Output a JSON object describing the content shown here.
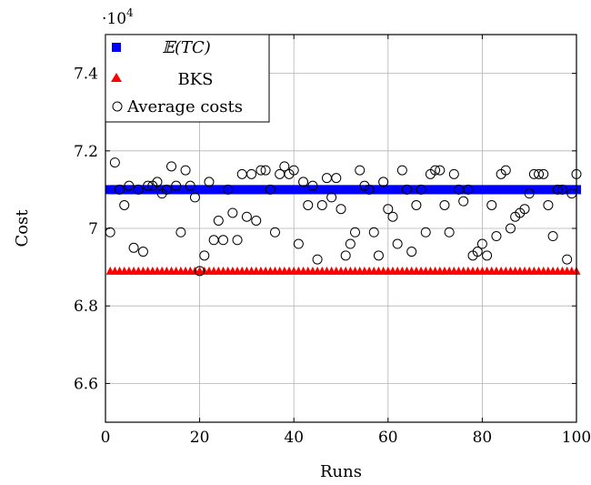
{
  "chart_data": {
    "type": "scatter",
    "xlabel": "Runs",
    "ylabel": "Cost",
    "y_scale_label_base": "·10",
    "y_scale_label_exp": "4",
    "xlim": [
      0,
      100
    ],
    "ylim": [
      6.5,
      7.5
    ],
    "x_ticks": [
      0,
      20,
      40,
      60,
      80,
      100
    ],
    "y_ticks": [
      6.6,
      6.8,
      7,
      7.2,
      7.4
    ],
    "x_tick_labels": [
      "0",
      "20",
      "40",
      "60",
      "80",
      "100"
    ],
    "y_tick_labels": [
      "6.6",
      "6.8",
      "7",
      "7.2",
      "7.4"
    ],
    "grid": true,
    "legend_position": "top-left",
    "series": [
      {
        "name": "𝔼(TC)",
        "marker": "square",
        "color": "#0000ff",
        "x": [
          1,
          2,
          3,
          4,
          5,
          6,
          7,
          8,
          9,
          10,
          11,
          12,
          13,
          14,
          15,
          16,
          17,
          18,
          19,
          20,
          21,
          22,
          23,
          24,
          25,
          26,
          27,
          28,
          29,
          30,
          31,
          32,
          33,
          34,
          35,
          36,
          37,
          38,
          39,
          40,
          41,
          42,
          43,
          44,
          45,
          46,
          47,
          48,
          49,
          50,
          51,
          52,
          53,
          54,
          55,
          56,
          57,
          58,
          59,
          60,
          61,
          62,
          63,
          64,
          65,
          66,
          67,
          68,
          69,
          70,
          71,
          72,
          73,
          74,
          75,
          76,
          77,
          78,
          79,
          80,
          81,
          82,
          83,
          84,
          85,
          86,
          87,
          88,
          89,
          90,
          91,
          92,
          93,
          94,
          95,
          96,
          97,
          98,
          99,
          100
        ],
        "y": [
          7.1,
          7.1,
          7.1,
          7.1,
          7.1,
          7.1,
          7.1,
          7.1,
          7.1,
          7.1,
          7.1,
          7.1,
          7.1,
          7.1,
          7.1,
          7.1,
          7.1,
          7.1,
          7.1,
          7.1,
          7.1,
          7.1,
          7.1,
          7.1,
          7.1,
          7.1,
          7.1,
          7.1,
          7.1,
          7.1,
          7.1,
          7.1,
          7.1,
          7.1,
          7.1,
          7.1,
          7.1,
          7.1,
          7.1,
          7.1,
          7.1,
          7.1,
          7.1,
          7.1,
          7.1,
          7.1,
          7.1,
          7.1,
          7.1,
          7.1,
          7.1,
          7.1,
          7.1,
          7.1,
          7.1,
          7.1,
          7.1,
          7.1,
          7.1,
          7.1,
          7.1,
          7.1,
          7.1,
          7.1,
          7.1,
          7.1,
          7.1,
          7.1,
          7.1,
          7.1,
          7.1,
          7.1,
          7.1,
          7.1,
          7.1,
          7.1,
          7.1,
          7.1,
          7.1,
          7.1,
          7.1,
          7.1,
          7.1,
          7.1,
          7.1,
          7.1,
          7.1,
          7.1,
          7.1,
          7.1,
          7.1,
          7.1,
          7.1,
          7.1,
          7.1,
          7.1,
          7.1,
          7.1,
          7.1,
          7.1
        ]
      },
      {
        "name": "BKS",
        "marker": "triangle",
        "color": "#ff0000",
        "x": [
          1,
          2,
          3,
          4,
          5,
          6,
          7,
          8,
          9,
          10,
          11,
          12,
          13,
          14,
          15,
          16,
          17,
          18,
          19,
          20,
          21,
          22,
          23,
          24,
          25,
          26,
          27,
          28,
          29,
          30,
          31,
          32,
          33,
          34,
          35,
          36,
          37,
          38,
          39,
          40,
          41,
          42,
          43,
          44,
          45,
          46,
          47,
          48,
          49,
          50,
          51,
          52,
          53,
          54,
          55,
          56,
          57,
          58,
          59,
          60,
          61,
          62,
          63,
          64,
          65,
          66,
          67,
          68,
          69,
          70,
          71,
          72,
          73,
          74,
          75,
          76,
          77,
          78,
          79,
          80,
          81,
          82,
          83,
          84,
          85,
          86,
          87,
          88,
          89,
          90,
          91,
          92,
          93,
          94,
          95,
          96,
          97,
          98,
          99,
          100
        ],
        "y": [
          6.89,
          6.89,
          6.89,
          6.89,
          6.89,
          6.89,
          6.89,
          6.89,
          6.89,
          6.89,
          6.89,
          6.89,
          6.89,
          6.89,
          6.89,
          6.89,
          6.89,
          6.89,
          6.89,
          6.89,
          6.89,
          6.89,
          6.89,
          6.89,
          6.89,
          6.89,
          6.89,
          6.89,
          6.89,
          6.89,
          6.89,
          6.89,
          6.89,
          6.89,
          6.89,
          6.89,
          6.89,
          6.89,
          6.89,
          6.89,
          6.89,
          6.89,
          6.89,
          6.89,
          6.89,
          6.89,
          6.89,
          6.89,
          6.89,
          6.89,
          6.89,
          6.89,
          6.89,
          6.89,
          6.89,
          6.89,
          6.89,
          6.89,
          6.89,
          6.89,
          6.89,
          6.89,
          6.89,
          6.89,
          6.89,
          6.89,
          6.89,
          6.89,
          6.89,
          6.89,
          6.89,
          6.89,
          6.89,
          6.89,
          6.89,
          6.89,
          6.89,
          6.89,
          6.89,
          6.89,
          6.89,
          6.89,
          6.89,
          6.89,
          6.89,
          6.89,
          6.89,
          6.89,
          6.89,
          6.89,
          6.89,
          6.89,
          6.89,
          6.89,
          6.89,
          6.89,
          6.89,
          6.89,
          6.89,
          6.89
        ]
      },
      {
        "name": "Average costs",
        "marker": "circle-open",
        "color": "#000000",
        "x": [
          1,
          2,
          3,
          4,
          5,
          6,
          7,
          8,
          9,
          10,
          11,
          12,
          13,
          14,
          15,
          16,
          17,
          18,
          19,
          20,
          21,
          22,
          23,
          24,
          25,
          26,
          27,
          28,
          29,
          30,
          31,
          32,
          33,
          34,
          35,
          36,
          37,
          38,
          39,
          40,
          41,
          42,
          43,
          44,
          45,
          46,
          47,
          48,
          49,
          50,
          51,
          52,
          53,
          54,
          55,
          56,
          57,
          58,
          59,
          60,
          61,
          62,
          63,
          64,
          65,
          66,
          67,
          68,
          69,
          70,
          71,
          72,
          73,
          74,
          75,
          76,
          77,
          78,
          79,
          80,
          81,
          82,
          83,
          84,
          85,
          86,
          87,
          88,
          89,
          90,
          91,
          92,
          93,
          94,
          95,
          96,
          97,
          98,
          99,
          100
        ],
        "y": [
          6.99,
          7.17,
          7.1,
          7.06,
          7.11,
          6.95,
          7.1,
          6.94,
          7.11,
          7.11,
          7.12,
          7.09,
          7.1,
          7.16,
          7.11,
          6.99,
          7.15,
          7.11,
          7.08,
          6.89,
          6.93,
          7.12,
          6.97,
          7.02,
          6.97,
          7.1,
          7.04,
          6.97,
          7.14,
          7.03,
          7.14,
          7.02,
          7.15,
          7.15,
          7.1,
          6.99,
          7.14,
          7.16,
          7.14,
          7.15,
          6.96,
          7.12,
          7.06,
          7.11,
          6.92,
          7.06,
          7.13,
          7.08,
          7.13,
          7.05,
          6.93,
          6.96,
          6.99,
          7.15,
          7.11,
          7.1,
          6.99,
          6.93,
          7.12,
          7.05,
          7.03,
          6.96,
          7.15,
          7.1,
          6.94,
          7.06,
          7.1,
          6.99,
          7.14,
          7.15,
          7.15,
          7.06,
          6.99,
          7.14,
          7.1,
          7.07,
          7.1,
          6.93,
          6.94,
          6.96,
          6.93,
          7.06,
          6.98,
          7.14,
          7.15,
          7.0,
          7.03,
          7.04,
          7.05,
          7.09,
          7.14,
          7.14,
          7.14,
          7.06,
          6.98,
          7.1,
          7.1,
          6.92,
          7.09,
          7.14
        ]
      }
    ]
  }
}
